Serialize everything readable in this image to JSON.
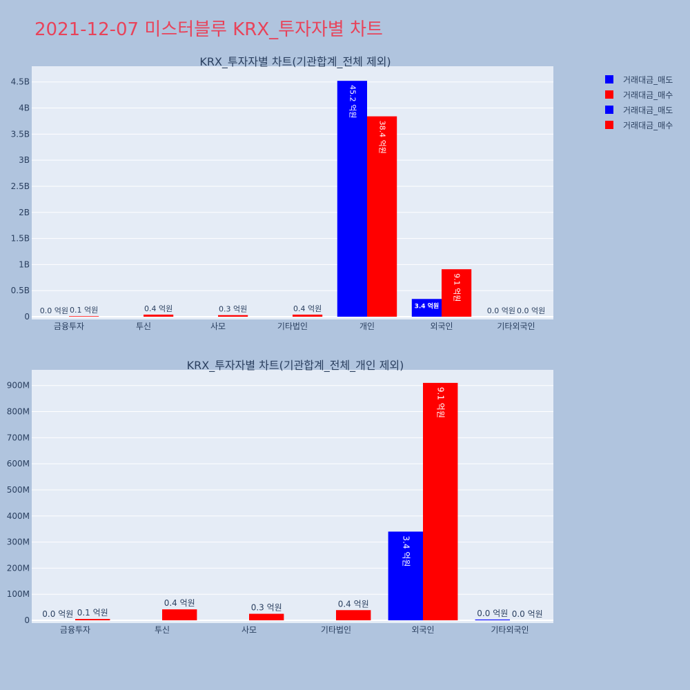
{
  "page_title": "2021-12-07 미스터블루 KRX_투자자별 차트",
  "colors": {
    "page_bg": "#b0c4de",
    "plot_bg": "#e5ecf6",
    "grid": "#ffffff",
    "title": "#e8435a",
    "text": "#2a3f5f",
    "sell": "#0000ff",
    "buy": "#ff0000"
  },
  "legend": {
    "placement": "top-right",
    "entries": [
      {
        "label": "거래대금_매도",
        "color": "#0000ff"
      },
      {
        "label": "거래대금_매수",
        "color": "#ff0000"
      },
      {
        "label": "거래대금_매도",
        "color": "#0000ff"
      },
      {
        "label": "거래대금_매수",
        "color": "#ff0000"
      }
    ]
  },
  "chart_data": [
    {
      "type": "bar",
      "title": "KRX_투자자별 차트(기관합계_전체 제외)",
      "categories": [
        "금융투자",
        "투신",
        "사모",
        "기타법인",
        "개인",
        "외국인",
        "기타외국인"
      ],
      "ylim": [
        0,
        4800000000
      ],
      "yticks": [
        0,
        500000000,
        1000000000,
        1500000000,
        2000000000,
        2500000000,
        3000000000,
        3500000000,
        4000000000,
        4500000000
      ],
      "ytick_labels": [
        "0",
        "0.5B",
        "1B",
        "1.5B",
        "2B",
        "2.5B",
        "3B",
        "3.5B",
        "4B",
        "4.5B"
      ],
      "grid": true,
      "series": [
        {
          "name": "거래대금_매도",
          "color": "#0000ff",
          "values": [
            0,
            0,
            0,
            0,
            4520000000,
            340000000,
            0
          ],
          "labels": [
            "0.0 억원",
            "",
            "",
            "",
            "45.2 억원",
            "3.4 억원",
            "0.0 억원"
          ]
        },
        {
          "name": "거래대금_매수",
          "color": "#ff0000",
          "values": [
            10000000,
            40000000,
            30000000,
            40000000,
            3840000000,
            910000000,
            0
          ],
          "labels": [
            "0.1 억원",
            "0.4 억원",
            "0.3 억원",
            "0.4 억원",
            "38.4 억원",
            "9.1 억원",
            "0.0 억원"
          ]
        }
      ]
    },
    {
      "type": "bar",
      "title": "KRX_투자자별 차트(기관합계_전체_개인 제외)",
      "categories": [
        "금융투자",
        "투신",
        "사모",
        "기타법인",
        "외국인",
        "기타외국인"
      ],
      "ylim": [
        0,
        960000000
      ],
      "yticks": [
        0,
        100000000,
        200000000,
        300000000,
        400000000,
        500000000,
        600000000,
        700000000,
        800000000,
        900000000
      ],
      "ytick_labels": [
        "0",
        "100M",
        "200M",
        "300M",
        "400M",
        "500M",
        "600M",
        "700M",
        "800M",
        "900M"
      ],
      "grid": true,
      "series": [
        {
          "name": "거래대금_매도",
          "color": "#0000ff",
          "values": [
            0,
            0,
            0,
            0,
            340000000,
            3000000
          ],
          "labels": [
            "0.0 억원",
            "",
            "",
            "",
            "3.4 억원",
            "0.0 억원"
          ]
        },
        {
          "name": "거래대금_매수",
          "color": "#ff0000",
          "values": [
            5000000,
            42000000,
            25000000,
            39000000,
            910000000,
            0
          ],
          "labels": [
            "0.1 억원",
            "0.4 억원",
            "0.3 억원",
            "0.4 억원",
            "9.1 억원",
            "0.0 억원"
          ]
        }
      ]
    }
  ]
}
